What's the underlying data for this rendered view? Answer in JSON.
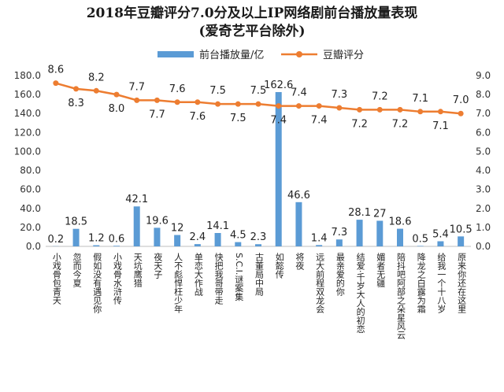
{
  "chart_data": {
    "type": "bar",
    "title": "2018年豆瓣评分7.0分及以上IP网络剧前台播放量表现",
    "subtitle": "(爱奇艺平台除外)",
    "categories": [
      "小戏骨包青天",
      "忽而今夏",
      "假如没有遇见你",
      "小戏骨水浒传",
      "天坑鹰猎",
      "夜天子",
      "人不彪悍枉少年",
      "单恋大作战",
      "快把我哥带走",
      "S.C.I.谜案集",
      "古董局中局",
      "如懿传",
      "将夜",
      "远大前程双龙会",
      "最亲爱的你",
      "结爱·千岁大人的初恋",
      "媚者无疆",
      "陪抖吧阿部之朵星风云",
      "降龙之白露为霜",
      "给我一个十八岁",
      "原来你还在这里"
    ],
    "series": [
      {
        "name": "前台播放量/亿",
        "type": "bar",
        "axis": "left",
        "color": "#5B9BD5",
        "values": [
          0.2,
          18.5,
          1.2,
          0.6,
          42.1,
          19.6,
          12,
          2.4,
          14.1,
          4.5,
          2.3,
          162.6,
          46.6,
          1.4,
          7.3,
          28.1,
          27,
          18.6,
          0.5,
          5.4,
          10.5
        ],
        "labels": [
          "0.2",
          "18.5",
          "1.2",
          "0.6",
          "42.1",
          "19.6",
          "12",
          "2.4",
          "14.1",
          "4.5",
          "2.3",
          "162.6",
          "46.6",
          "1.4",
          "7.3",
          "28.1",
          "27",
          "18.6",
          "0.5",
          "5.4",
          "10.5"
        ]
      },
      {
        "name": "豆瓣评分",
        "type": "line",
        "axis": "right",
        "color": "#ED7D31",
        "values": [
          8.6,
          8.3,
          8.2,
          8.0,
          7.7,
          7.7,
          7.6,
          7.6,
          7.5,
          7.5,
          7.5,
          7.4,
          7.4,
          7.4,
          7.3,
          7.2,
          7.2,
          7.2,
          7.1,
          7.1,
          7.0
        ],
        "labels": [
          "8.6",
          "8.3",
          "8.2",
          "8.0",
          "7.7",
          "7.7",
          "7.6",
          "7.6",
          "7.5",
          "7.5",
          "7.5",
          "7.4",
          "7.4",
          "7.4",
          "7.3",
          "7.2",
          "7.2",
          "7.2",
          "7.1",
          "7.1",
          "7.0"
        ]
      }
    ],
    "y_left": {
      "ylim": [
        0,
        180
      ],
      "ticks": [
        "0.0",
        "20.0",
        "40.0",
        "60.0",
        "80.0",
        "100.0",
        "120.0",
        "140.0",
        "160.0",
        "180.0"
      ]
    },
    "y_right": {
      "ylim": [
        0,
        9
      ],
      "ticks": [
        "0.0",
        "1.0",
        "2.0",
        "3.0",
        "4.0",
        "5.0",
        "6.0",
        "7.0",
        "8.0",
        "9.0"
      ]
    },
    "xlabel": "",
    "ylabel": "",
    "grid": false,
    "legend": "top"
  }
}
